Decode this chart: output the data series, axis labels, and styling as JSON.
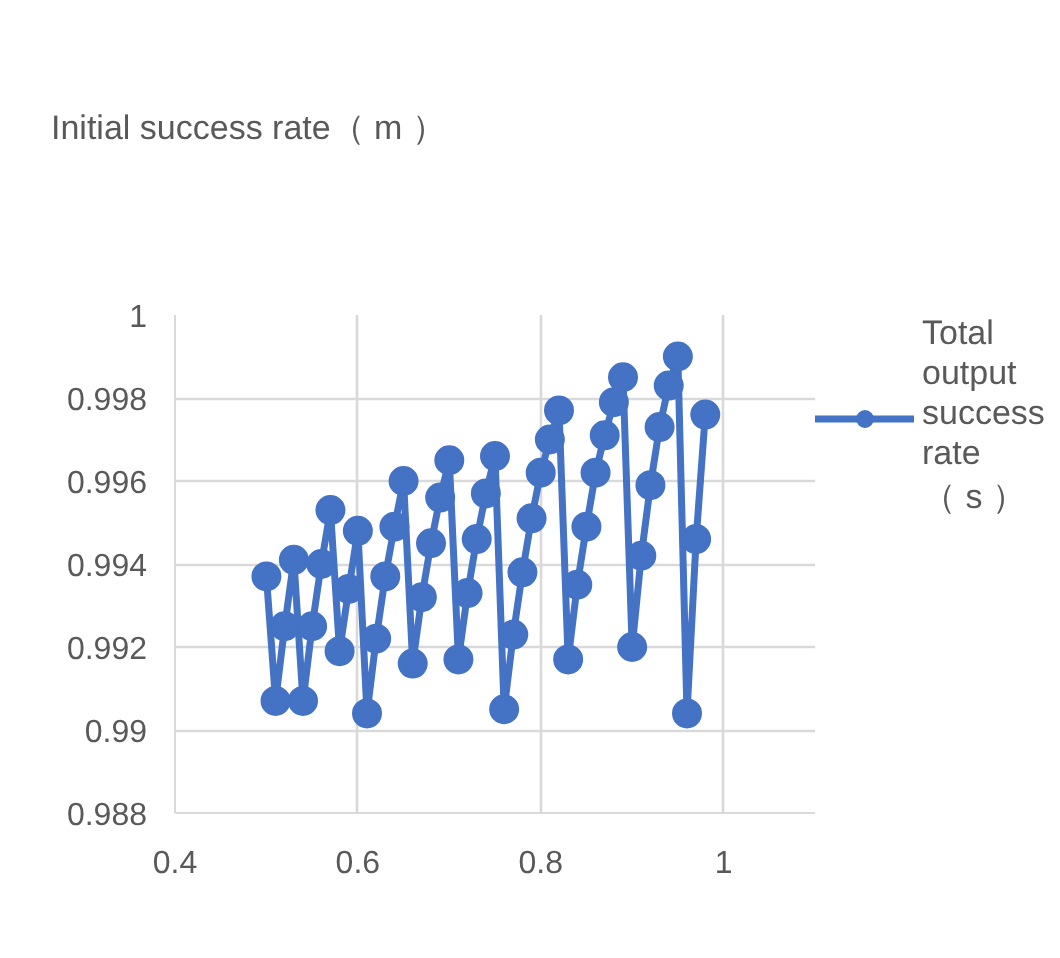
{
  "chart_data": {
    "type": "line",
    "title": "Initial success rate（ m ）",
    "x": [
      0.5,
      0.51,
      0.52,
      0.53,
      0.54,
      0.55,
      0.56,
      0.57,
      0.58,
      0.59,
      0.6,
      0.61,
      0.62,
      0.63,
      0.64,
      0.65,
      0.66,
      0.67,
      0.68,
      0.69,
      0.7,
      0.71,
      0.72,
      0.73,
      0.74,
      0.75,
      0.76,
      0.77,
      0.78,
      0.79,
      0.8,
      0.81,
      0.82,
      0.83,
      0.84,
      0.85,
      0.86,
      0.87,
      0.88,
      0.89,
      0.9,
      0.91,
      0.92,
      0.93,
      0.94,
      0.95,
      0.96,
      0.97,
      0.98
    ],
    "series": [
      {
        "name": "Total output success rate（ s ）",
        "color": "#4472c4",
        "values": [
          0.9937,
          0.9907,
          0.9925,
          0.9941,
          0.9907,
          0.9925,
          0.994,
          0.9953,
          0.9919,
          0.9934,
          0.9948,
          0.9904,
          0.9922,
          0.9937,
          0.9949,
          0.996,
          0.9916,
          0.9932,
          0.9945,
          0.9956,
          0.9965,
          0.9917,
          0.9933,
          0.9946,
          0.9957,
          0.9966,
          0.9905,
          0.9923,
          0.9938,
          0.9951,
          0.9962,
          0.997,
          0.9977,
          0.9917,
          0.9935,
          0.9949,
          0.9962,
          0.9971,
          0.9979,
          0.9985,
          0.992,
          0.9942,
          0.9959,
          0.9973,
          0.9983,
          0.999,
          0.9904,
          0.9946,
          0.9976
        ]
      }
    ],
    "xlim": [
      0.4,
      1.1
    ],
    "xticks": [
      0.4,
      0.6,
      0.8,
      1
    ],
    "ylim": [
      0.988,
      1
    ],
    "yticks": [
      0.988,
      0.99,
      0.992,
      0.994,
      0.996,
      0.998,
      1
    ],
    "grid": true,
    "legend": "right",
    "marker": "circle",
    "line_style": "solid"
  }
}
